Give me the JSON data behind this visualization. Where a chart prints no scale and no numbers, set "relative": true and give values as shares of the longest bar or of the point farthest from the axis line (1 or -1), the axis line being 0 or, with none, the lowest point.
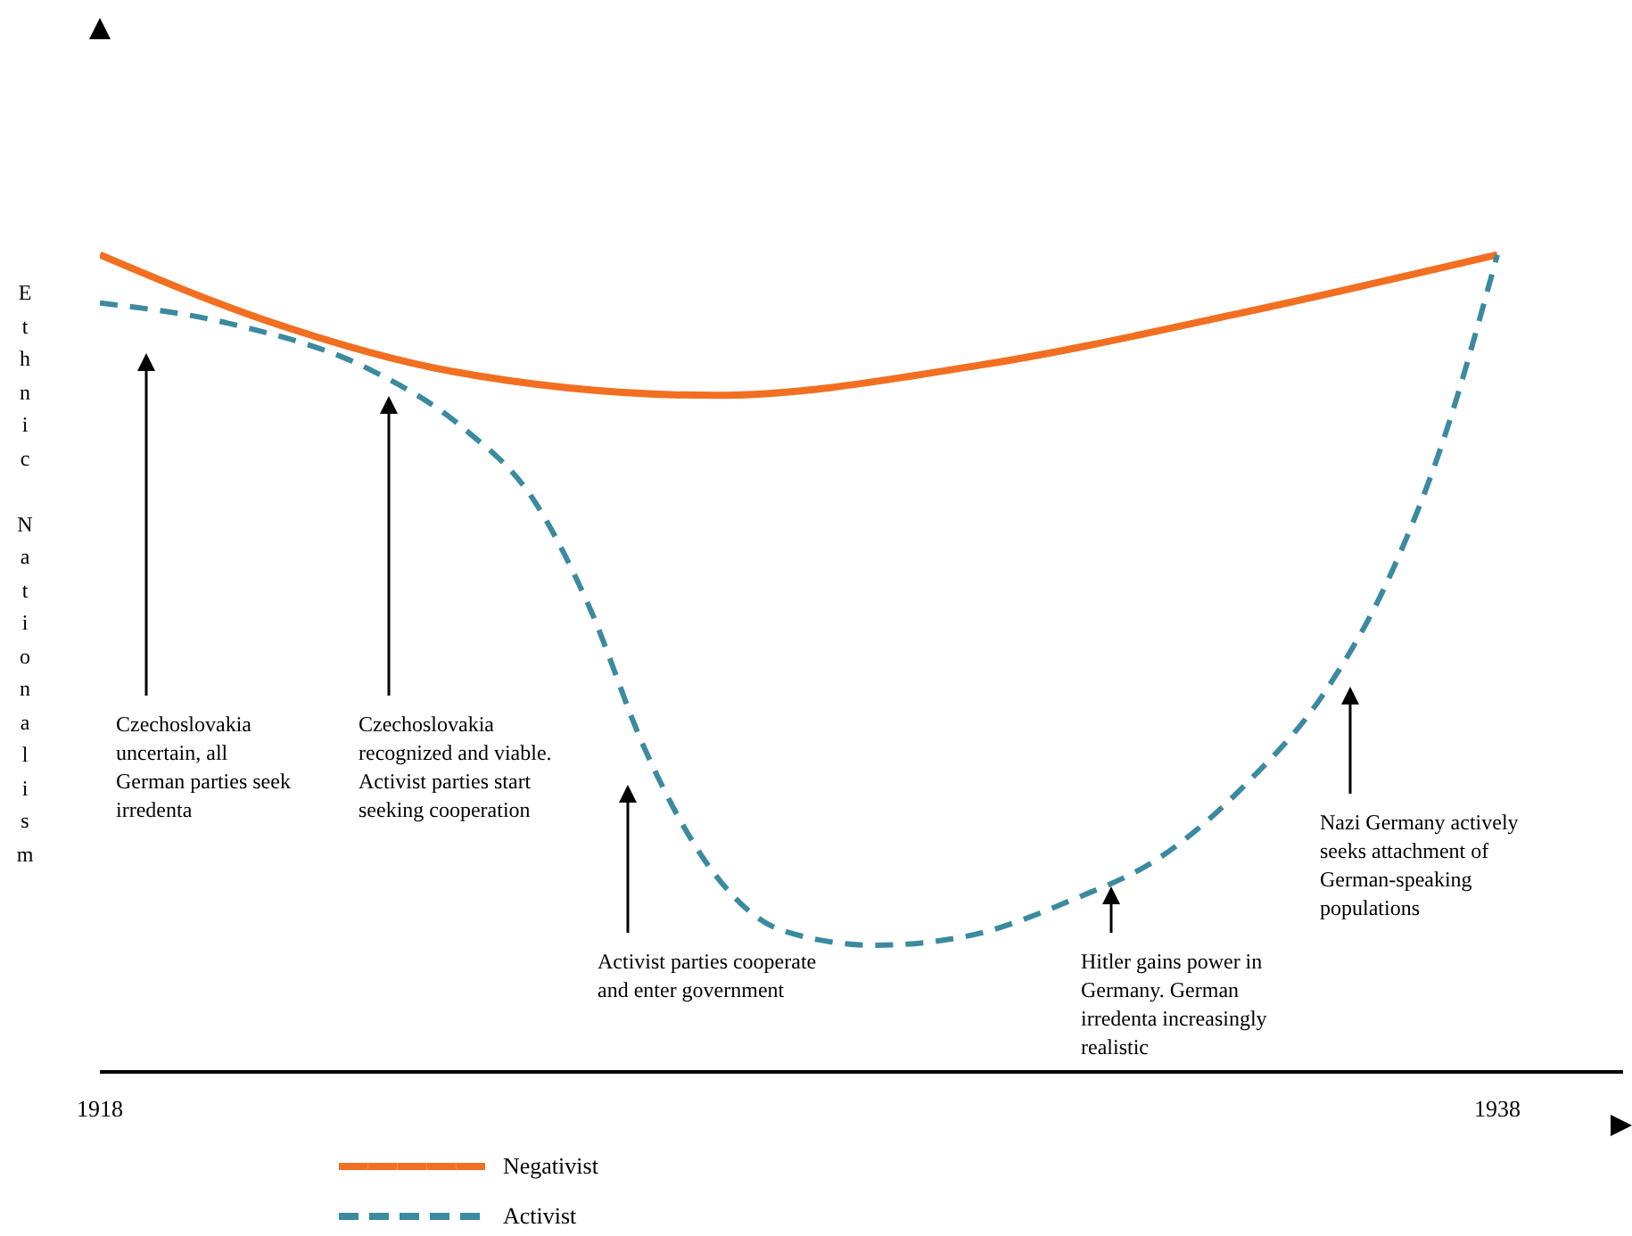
{
  "chart_data": {
    "type": "line",
    "relative": true,
    "ylabel": "Ethnic Nationalism",
    "xlim": [
      1918,
      1939.8
    ],
    "xticks": [
      1918,
      1938
    ],
    "legend": "bottom",
    "grid": false,
    "marker": "none",
    "series": [
      {
        "name": "Negativist",
        "color": "#f26f21",
        "line_style": "solid",
        "x": [
          1918,
          1920.4,
          1923.0,
          1926.8,
          1930.6,
          1934.4,
          1938
        ],
        "values": [
          1.0,
          0.919,
          0.858,
          0.828,
          0.865,
          0.93,
          1.0
        ]
      },
      {
        "name": "Activist",
        "color": "#3a8aa0",
        "line_style": "dashed",
        "x": [
          1918,
          1919.9,
          1921.9,
          1923.2,
          1924.2,
          1925.0,
          1925.8,
          1926.8,
          1927.8,
          1929.1,
          1930.4,
          1931.9,
          1933.2,
          1934.4,
          1935.5,
          1936.5,
          1937.2,
          1938
        ],
        "values": [
          0.941,
          0.915,
          0.858,
          0.788,
          0.701,
          0.57,
          0.395,
          0.242,
          0.172,
          0.155,
          0.166,
          0.21,
          0.264,
          0.352,
          0.461,
          0.614,
          0.766,
          1.0
        ]
      }
    ],
    "annotations": [
      "Czechoslovakia uncertain, all German parties seek irredenta",
      "Czechoslovakia recognized and viable. Activist parties start seeking cooperation",
      "Activist parties cooperate and enter government",
      "Hitler gains power in Germany. German irredenta increasingly realistic",
      "Nazi Germany actively seeks attachment of German-speaking populations"
    ]
  }
}
